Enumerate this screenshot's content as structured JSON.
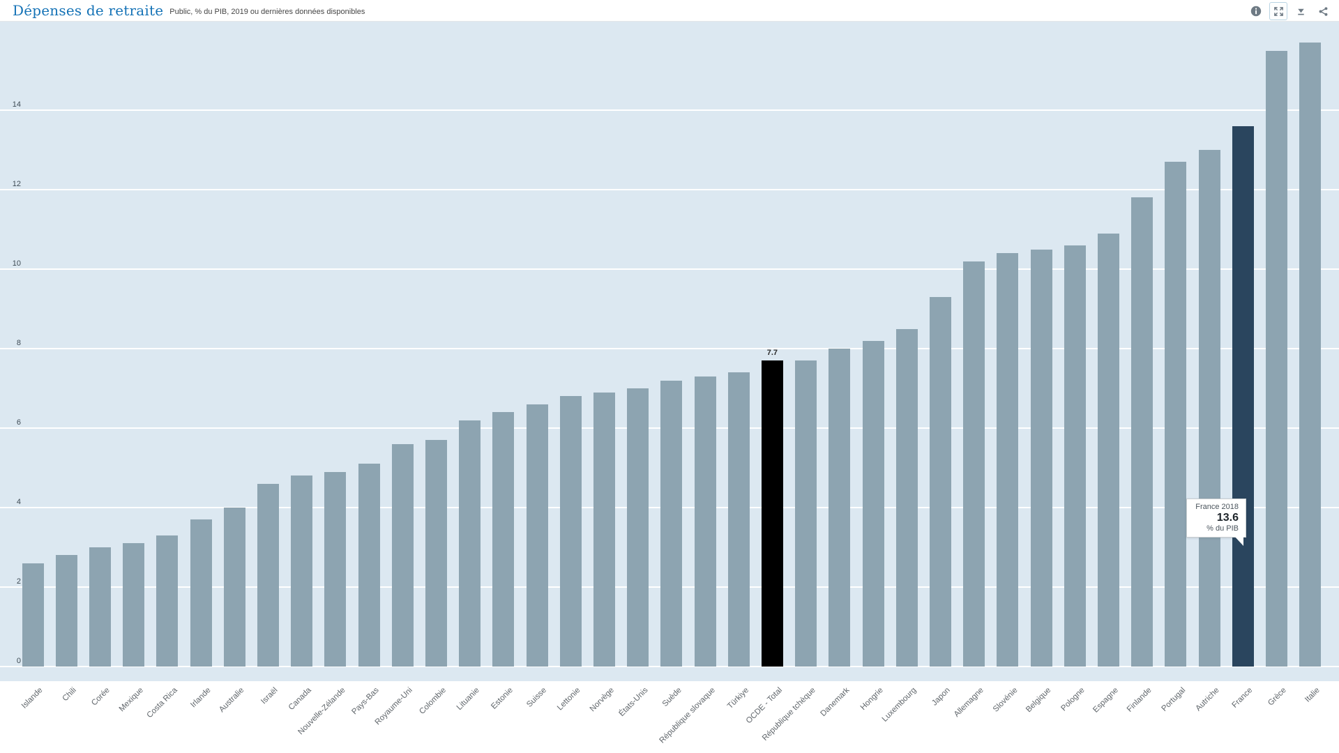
{
  "header": {
    "title": "Dépenses de retraite",
    "subtitle": "Public, % du PIB, 2019 ou dernières données disponibles",
    "toolbar_icons": [
      "info",
      "fullscreen",
      "download",
      "share"
    ]
  },
  "colors": {
    "plot_background": "#dce8f1",
    "bar_default": "#8da4b1",
    "bar_highlight_black": "#000000",
    "bar_highlight_navy": "#2a455e",
    "gridline": "#ffffff",
    "title_blue": "#1472b6"
  },
  "chart_data": {
    "type": "bar",
    "title": "Dépenses de retraite",
    "subtitle": "Public, % du PIB, 2019 ou dernières données disponibles",
    "ylabel": "% du PIB",
    "ylim": [
      0,
      16.2
    ],
    "yticks": [
      0,
      2,
      4,
      6,
      8,
      10,
      12,
      14
    ],
    "grid": true,
    "legend_position": "none",
    "categories": [
      "Islande",
      "Chili",
      "Corée",
      "Mexique",
      "Costa Rica",
      "Irlande",
      "Australie",
      "Israël",
      "Canada",
      "Nouvelle-Zélande",
      "Pays-Bas",
      "Royaume-Uni",
      "Colombie",
      "Lituanie",
      "Estonie",
      "Suisse",
      "Lettonie",
      "Norvège",
      "États-Unis",
      "Suède",
      "République slovaque",
      "Türkiye",
      "OCDE - Total",
      "République tchèque",
      "Danemark",
      "Hongrie",
      "Luxembourg",
      "Japon",
      "Allemagne",
      "Slovénie",
      "Belgique",
      "Pologne",
      "Espagne",
      "Finlande",
      "Portugal",
      "Autriche",
      "France",
      "Grèce",
      "Italie"
    ],
    "values": [
      2.6,
      2.8,
      3.0,
      3.1,
      3.3,
      3.7,
      4.0,
      4.6,
      4.8,
      4.9,
      5.1,
      5.6,
      5.7,
      6.2,
      6.4,
      6.6,
      6.8,
      6.9,
      7.0,
      7.2,
      7.3,
      7.4,
      7.7,
      7.7,
      8.0,
      8.2,
      8.5,
      9.3,
      10.2,
      10.4,
      10.5,
      10.6,
      10.9,
      11.8,
      12.7,
      13.0,
      13.6,
      15.5,
      15.7
    ],
    "highlight": {
      "black_bar": "OCDE - Total",
      "navy_bar": "France"
    },
    "data_label": {
      "bar": "OCDE - Total",
      "text": "7.7"
    }
  },
  "tooltip": {
    "line1": "France 2018",
    "value": "13.6",
    "line2": "% du PIB"
  }
}
